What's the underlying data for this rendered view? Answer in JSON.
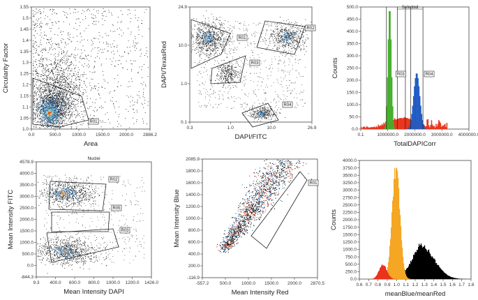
{
  "chart_data": [
    {
      "type": "scatter",
      "xlabel": "Area",
      "ylabel": "Circularity Factor",
      "xlim": [
        0,
        2886.2
      ],
      "ylim": [
        1.0,
        1.55
      ],
      "xticks": [
        "0.0",
        "500.0",
        "1000.0",
        "1500.0",
        "2000.0",
        "2886.2"
      ],
      "yticks": [
        "1.0",
        "1.05",
        "1.1",
        "1.15",
        "1.2",
        "1.25",
        "1.3",
        "1.35",
        "1.4",
        "1.45",
        "1.5",
        "1.55"
      ],
      "gates": [
        "R01"
      ],
      "density_center": {
        "x": 450,
        "y": 1.08
      }
    },
    {
      "type": "scatter",
      "xlabel": "DAPI/FITC",
      "ylabel": "DAPI/TexasRed",
      "scale": "log",
      "xlim": [
        0.3,
        26.9
      ],
      "ylim": [
        0.1,
        24.9
      ],
      "xticks": [
        "0.3",
        "1.0",
        "10.0",
        "26.9"
      ],
      "yticks": [
        "0.1",
        "1.0",
        "10.0",
        "24.9"
      ],
      "gates": [
        "R01",
        "R02",
        "R03",
        "R04"
      ]
    },
    {
      "type": "bar",
      "xlabel": "TotalDAPICorr",
      "ylabel": "Counts",
      "xlim": [
        0.1,
        4000000
      ],
      "ylim": [
        0,
        500
      ],
      "xticks": [
        "0.1",
        "1000000.0",
        "2000000.0",
        "3000000.0",
        "4000000.0"
      ],
      "yticks": [
        "0.0",
        "50.0",
        "100.0",
        "150.0",
        "200.0",
        "250.0",
        "300.0",
        "350.0",
        "400.0",
        "450.0",
        "500.0"
      ],
      "annotation": "Selected",
      "gates": [
        "R03",
        "R04"
      ],
      "peaks": [
        {
          "color": "#43b02a",
          "center": 1050000,
          "height": 500
        },
        {
          "color": "#1f5bc4",
          "center": 2050000,
          "height": 230
        }
      ]
    },
    {
      "type": "scatter",
      "title": "Nuclei",
      "xlabel": "Mean Intensity DAPI",
      "ylabel": "Mean Intensity FITC",
      "xlim": [
        9.3,
        1426.0
      ],
      "ylim": [
        -844.3,
        4578.9
      ],
      "xticks": [
        "9.3",
        "400.0",
        "600.0",
        "800.0",
        "1000.0",
        "1200.0",
        "1426.0"
      ],
      "yticks": [
        "-844.3",
        "0.0",
        "500.0",
        "1000.0",
        "1500.0",
        "2000.0",
        "2500.0",
        "3000.0",
        "3500.0",
        "4000.0",
        "4578.9"
      ],
      "gates": [
        "R02",
        "R05",
        "R03"
      ]
    },
    {
      "type": "scatter",
      "xlabel": "Mean Intensity Red",
      "ylabel": "Mean Intensity Blue",
      "xlim": [
        -557.2,
        2870.5
      ],
      "ylim": [
        -116.9,
        2085.9
      ],
      "xticks": [
        "-557.2",
        "500.0",
        "1000.0",
        "1500.0",
        "2000.0",
        "2870.5"
      ],
      "yticks": [
        "-116.9",
        "200.0",
        "400.0",
        "600.0",
        "800.0",
        "1000.0",
        "1200.0",
        "1400.0",
        "1600.0",
        "1800.0",
        "2085.9"
      ],
      "gates": [
        "R01"
      ]
    },
    {
      "type": "bar",
      "xlabel": "meanBlue/meanRed",
      "ylabel": "Counts",
      "xlim": [
        0.6,
        1.8
      ],
      "ylim": [
        0,
        4000
      ],
      "xticks": [
        "0.6",
        "0.7",
        "0.8",
        "0.9",
        "1.0",
        "1.1",
        "1.2",
        "1.3",
        "1.4",
        "1.5",
        "1.6",
        "1.7",
        "1.8"
      ],
      "yticks": [
        "0.0",
        "250.0",
        "500.0",
        "750.0",
        "1000.0",
        "1250.0",
        "1500.0",
        "1750.0",
        "2000.0",
        "2250.0",
        "2500.0",
        "2750.0",
        "3000.0",
        "3250.0",
        "3500.0",
        "3750.0",
        "4000.0"
      ],
      "series": [
        {
          "color": "#e8341c",
          "center": 0.85,
          "height": 520
        },
        {
          "color": "#f5a623",
          "center": 0.99,
          "height": 4000
        },
        {
          "color": "#000000",
          "center": 1.25,
          "height": 1250
        }
      ]
    }
  ]
}
